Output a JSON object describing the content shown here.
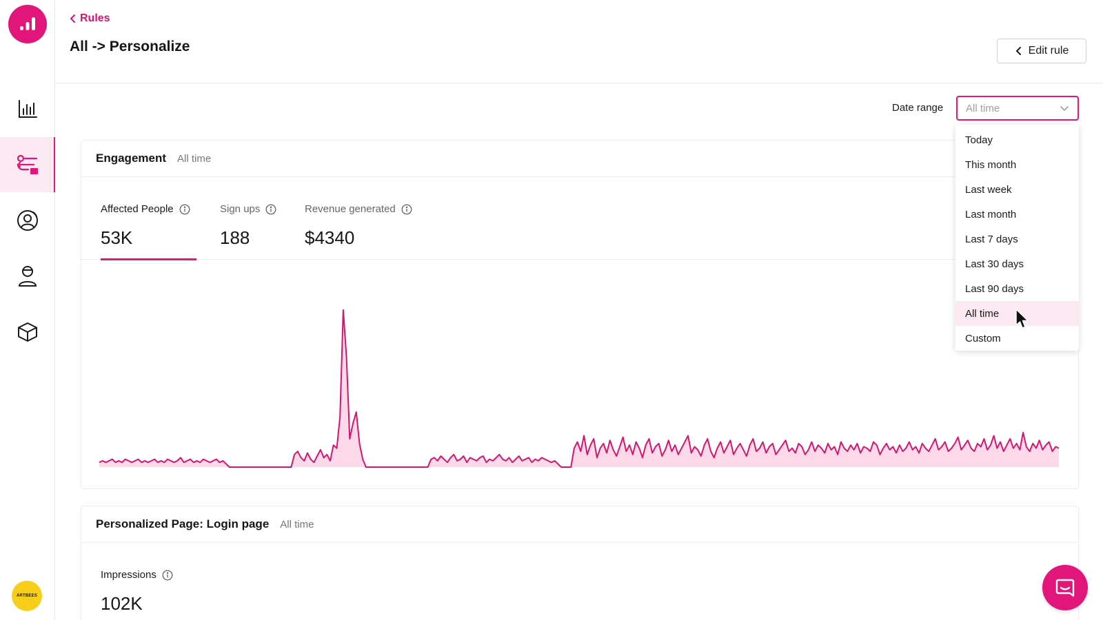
{
  "sidebar": {
    "logo_icon": "bar-chart-logo",
    "items": [
      {
        "name": "analytics",
        "icon": "bar-chart-icon",
        "active": false
      },
      {
        "name": "rules",
        "icon": "rules-toggle-icon",
        "active": true
      },
      {
        "name": "audience",
        "icon": "user-circle-icon",
        "active": false
      },
      {
        "name": "profile",
        "icon": "person-icon",
        "active": false
      },
      {
        "name": "products",
        "icon": "cube-icon",
        "active": false
      }
    ],
    "avatar_text": "ARTBEES"
  },
  "header": {
    "breadcrumb": "Rules",
    "title": "All -> Personalize",
    "edit_button": "Edit rule"
  },
  "date_range": {
    "label": "Date range",
    "selected": "All time",
    "options": [
      "Today",
      "This month",
      "Last week",
      "Last month",
      "Last 7 days",
      "Last 30 days",
      "Last 90 days",
      "All time",
      "Custom"
    ]
  },
  "engagement": {
    "title": "Engagement",
    "subtitle": "All time",
    "metrics": [
      {
        "label": "Affected People",
        "value": "53K",
        "active": true
      },
      {
        "label": "Sign ups",
        "value": "188",
        "active": false
      },
      {
        "label": "Revenue generated",
        "value": "$4340",
        "active": false
      }
    ]
  },
  "personalized": {
    "title": "Personalized Page: Login page",
    "subtitle": "All time",
    "metrics": [
      {
        "label": "Impressions",
        "value": "102K"
      }
    ]
  },
  "colors": {
    "accent": "#e2157a",
    "accent_light": "#fde9f1"
  },
  "chart_data": {
    "type": "area",
    "title": "",
    "xlabel": "",
    "ylabel": "",
    "grid": false,
    "series": [
      {
        "values": [
          3,
          4,
          3,
          4,
          5,
          3,
          4,
          3,
          5,
          4,
          3,
          4,
          5,
          3,
          4,
          3,
          4,
          5,
          3,
          4,
          3,
          5,
          4,
          3,
          4,
          6,
          3,
          4,
          5,
          3,
          4,
          3,
          5,
          4,
          3,
          4,
          5,
          3,
          4,
          2,
          0,
          0,
          0,
          0,
          0,
          0,
          0,
          0,
          0,
          0,
          0,
          0,
          0,
          0,
          0,
          0,
          0,
          0,
          0,
          0,
          8,
          10,
          6,
          4,
          9,
          5,
          3,
          7,
          11,
          6,
          8,
          4,
          14,
          12,
          32,
          100,
          70,
          18,
          28,
          35,
          15,
          5,
          0,
          0,
          0,
          0,
          0,
          0,
          0,
          0,
          0,
          0,
          0,
          0,
          0,
          0,
          0,
          0,
          0,
          0,
          0,
          0,
          5,
          6,
          4,
          7,
          5,
          3,
          6,
          8,
          4,
          5,
          7,
          3,
          6,
          5,
          4,
          6,
          7,
          3,
          5,
          4,
          6,
          8,
          5,
          4,
          6,
          3,
          5,
          7,
          4,
          5,
          6,
          3,
          5,
          4,
          6,
          5,
          4,
          3,
          4,
          2,
          0,
          0,
          0,
          0,
          12,
          16,
          10,
          20,
          8,
          14,
          18,
          6,
          12,
          15,
          9,
          17,
          11,
          7,
          13,
          19,
          10,
          14,
          8,
          16,
          12,
          6,
          14,
          18,
          9,
          13,
          15,
          7,
          11,
          17,
          10,
          14,
          8,
          12,
          16,
          20,
          9,
          13,
          11,
          7,
          14,
          18,
          10,
          6,
          12,
          16,
          9,
          13,
          17,
          8,
          12,
          15,
          11,
          7,
          14,
          18,
          10,
          12,
          16,
          9,
          13,
          15,
          8,
          11,
          14,
          17,
          10,
          12,
          9,
          15,
          13,
          8,
          11,
          16,
          10,
          14,
          12,
          9,
          15,
          11,
          13,
          8,
          16,
          12,
          10,
          14,
          11,
          15,
          9,
          13,
          12,
          10,
          16,
          14,
          8,
          12,
          15,
          11,
          13,
          9,
          14,
          10,
          12,
          16,
          11,
          13,
          9,
          15,
          12,
          10,
          14,
          18,
          11,
          13,
          16,
          10,
          12,
          15,
          19,
          11,
          14,
          17,
          12,
          10,
          15,
          13,
          18,
          11,
          14,
          20,
          12,
          16,
          10,
          14,
          18,
          12,
          15,
          11,
          22,
          13,
          10,
          15,
          12,
          17,
          11,
          14,
          16,
          10,
          13,
          12
        ]
      }
    ]
  }
}
